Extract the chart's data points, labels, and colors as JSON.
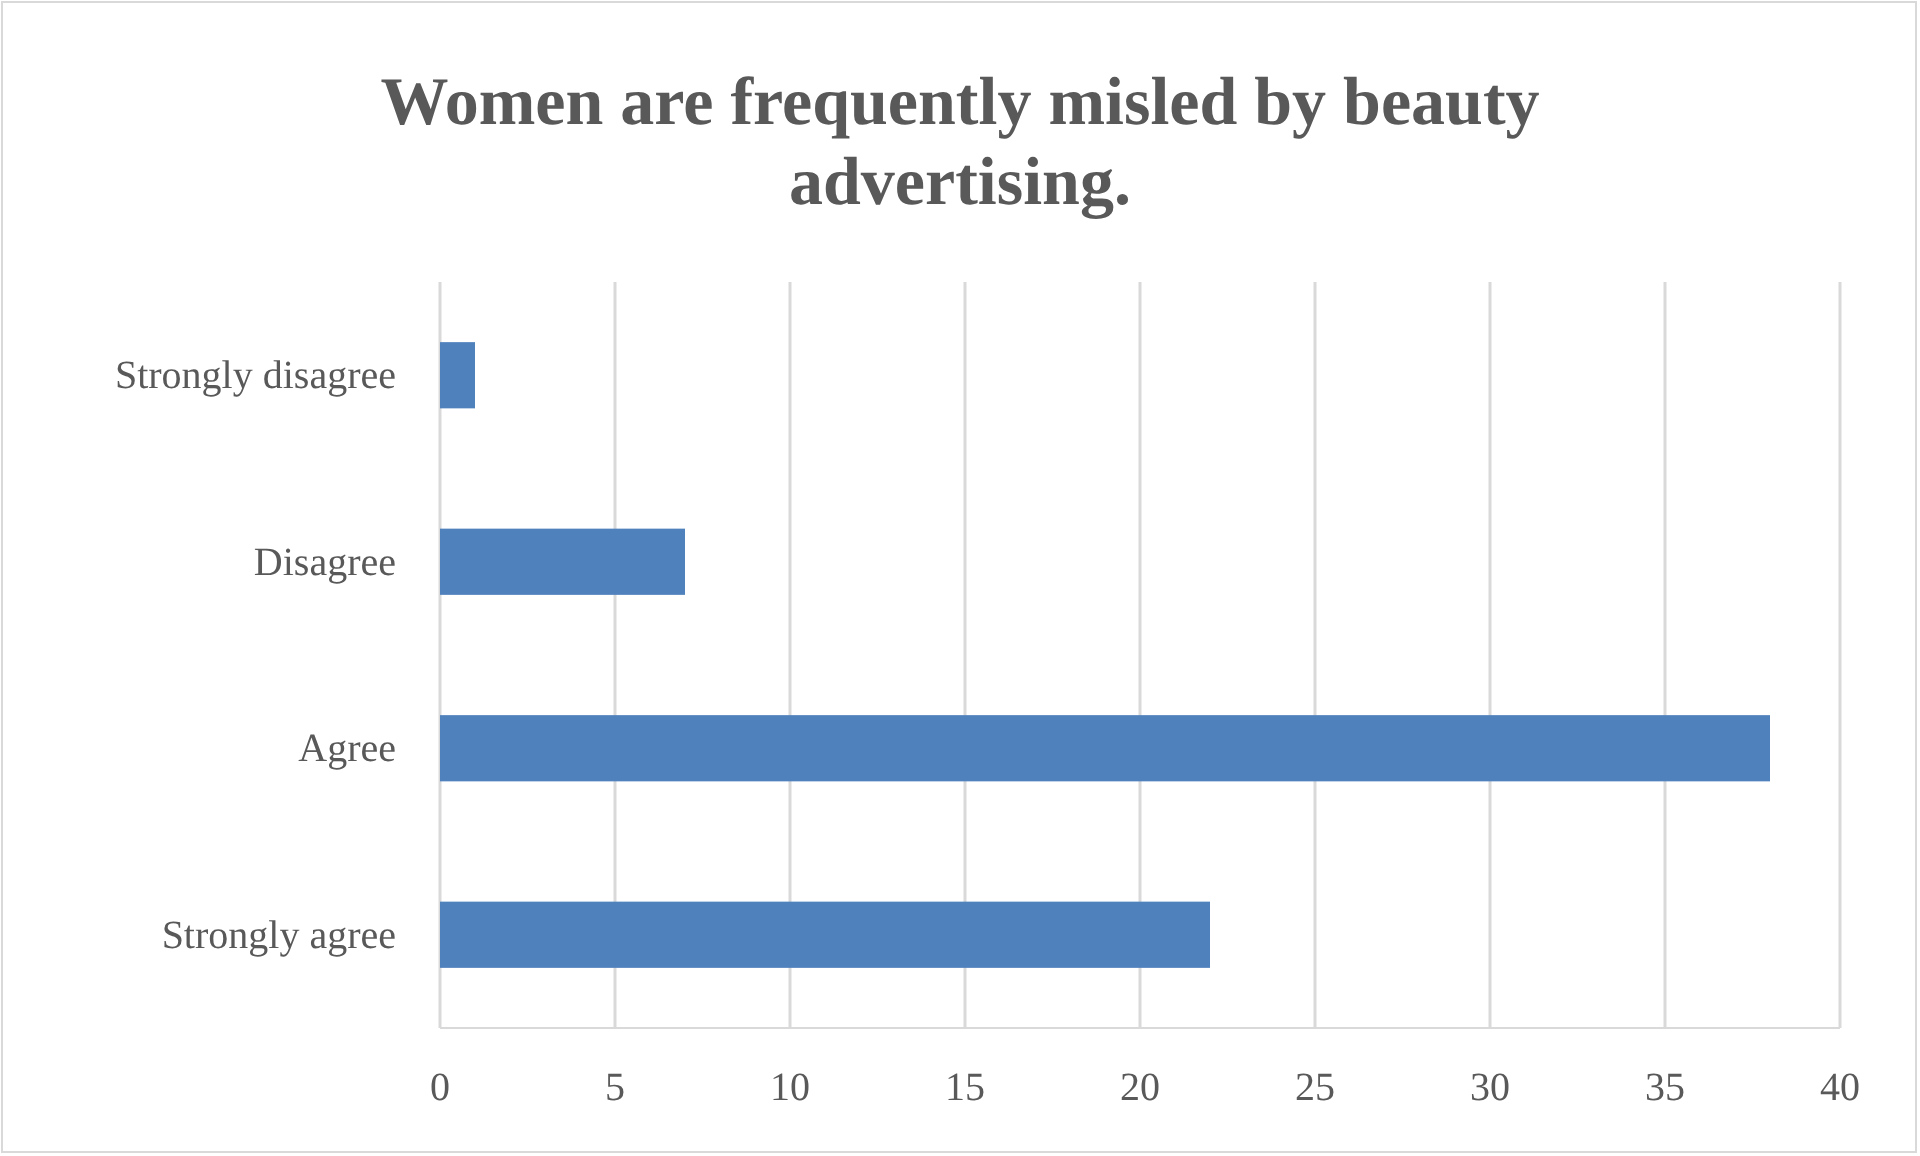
{
  "chart_data": {
    "type": "bar",
    "orientation": "horizontal",
    "title": "Women are frequently misled by beauty advertising.",
    "categories": [
      "Strongly disagree",
      "Disagree",
      "Agree",
      "Strongly agree"
    ],
    "values": [
      1,
      7,
      38,
      22
    ],
    "color": "#4f81bd",
    "xlim": [
      0,
      40
    ],
    "xticks": [
      0,
      5,
      10,
      15,
      20,
      25,
      30,
      35,
      40
    ],
    "grid": "x"
  }
}
